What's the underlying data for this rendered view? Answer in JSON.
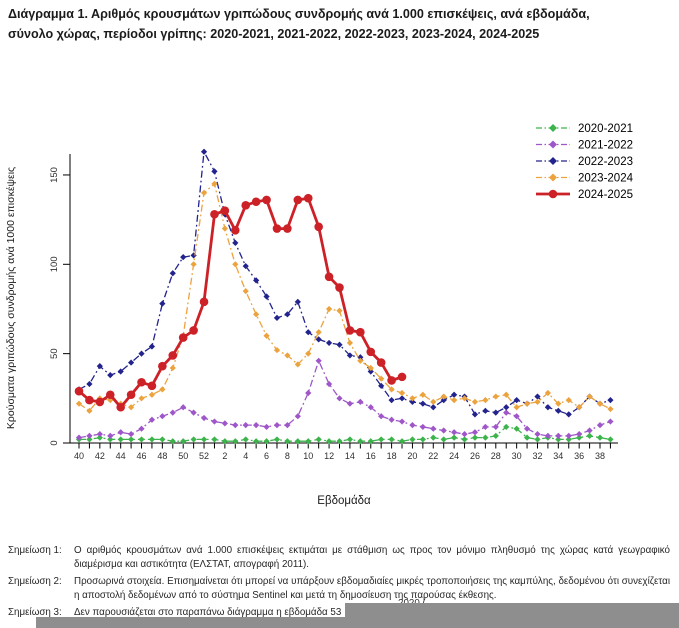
{
  "chart_data": {
    "type": "line",
    "title": "Διάγραμμα 1. Αριθμός κρουσμάτων γριπώδους συνδρομής ανά 1.000 επισκέψεις, ανά εβδομάδα, σύνολο χώρας, περίοδοι γρίπης: 2020-2021, 2021-2022, 2022-2023, 2023-2024, 2024-2025",
    "title_lines": [
      "Διάγραμμα 1. Αριθμός κρουσμάτων γριπώδους συνδρομής ανά 1.000 επισκέψεις, ανά εβδομάδα,",
      "σύνολο χώρας, περίοδοι γρίπης: 2020-2021, 2021-2022, 2022-2023, 2023-2024, 2024-2025"
    ],
    "xlabel": "Εβδομάδα",
    "ylabel": "Κρούσματα γριπώδους συνδρομής ανά 1000 επισκέψεις",
    "ylim": [
      0,
      170
    ],
    "yticks": [
      0,
      50,
      100,
      150
    ],
    "grid": false,
    "legend_position": "top-right",
    "x_tick_rule": "tick every week, label on even weeks",
    "weeks": [
      "40",
      "41",
      "42",
      "43",
      "44",
      "45",
      "46",
      "47",
      "48",
      "49",
      "50",
      "51",
      "52",
      "1",
      "2",
      "3",
      "4",
      "5",
      "6",
      "7",
      "8",
      "9",
      "10",
      "11",
      "12",
      "13",
      "14",
      "15",
      "16",
      "17",
      "18",
      "19",
      "20",
      "21",
      "22",
      "23",
      "24",
      "25",
      "26",
      "27",
      "28",
      "29",
      "30",
      "31",
      "32",
      "33",
      "34",
      "35",
      "36",
      "37",
      "38",
      "39"
    ],
    "series": [
      {
        "name": "2020-2021",
        "color": "#3cb44b",
        "style": "dashdot",
        "marker": "diamond",
        "values": [
          2,
          2,
          3,
          2,
          2,
          2,
          2,
          2,
          2,
          1,
          1,
          2,
          2,
          2,
          1,
          1,
          2,
          1,
          1,
          2,
          1,
          1,
          1,
          2,
          1,
          1,
          2,
          1,
          1,
          2,
          2,
          1,
          2,
          2,
          3,
          2,
          3,
          2,
          3,
          3,
          4,
          9,
          8,
          3,
          2,
          3,
          2,
          2,
          3,
          4,
          3,
          2
        ]
      },
      {
        "name": "2021-2022",
        "color": "#9f56c9",
        "style": "dashdot",
        "marker": "diamond",
        "values": [
          3,
          4,
          5,
          4,
          6,
          5,
          8,
          13,
          15,
          17,
          20,
          17,
          14,
          12,
          11,
          10,
          10,
          10,
          9,
          10,
          10,
          15,
          28,
          46,
          33,
          25,
          22,
          23,
          20,
          15,
          13,
          12,
          10,
          9,
          8,
          7,
          6,
          5,
          6,
          9,
          9,
          17,
          15,
          8,
          5,
          4,
          4,
          4,
          5,
          7,
          10,
          12
        ]
      },
      {
        "name": "2022-2023",
        "color": "#23238d",
        "style": "dashdot",
        "marker": "diamond",
        "values": [
          30,
          33,
          43,
          38,
          40,
          45,
          50,
          54,
          78,
          95,
          104,
          105,
          163,
          152,
          128,
          112,
          99,
          91,
          82,
          70,
          72,
          79,
          62,
          58,
          56,
          55,
          49,
          48,
          40,
          32,
          24,
          25,
          23,
          22,
          20,
          24,
          27,
          26,
          16,
          18,
          17,
          20,
          24,
          22,
          26,
          20,
          18,
          16,
          20,
          26,
          22,
          24
        ]
      },
      {
        "name": "2023-2024",
        "color": "#eca33e",
        "style": "dashdot",
        "marker": "diamond",
        "values": [
          22,
          18,
          25,
          24,
          22,
          20,
          25,
          27,
          30,
          42,
          60,
          100,
          140,
          145,
          120,
          100,
          85,
          72,
          60,
          52,
          49,
          44,
          50,
          62,
          75,
          74,
          56,
          46,
          42,
          36,
          30,
          28,
          25,
          27,
          23,
          26,
          24,
          25,
          23,
          24,
          26,
          27,
          20,
          22,
          23,
          28,
          22,
          24,
          20,
          26,
          22,
          19
        ]
      },
      {
        "name": "2024-2025",
        "color": "#cc2127",
        "style": "solid",
        "marker": "circle",
        "values": [
          29,
          24,
          23,
          27,
          20,
          27,
          34,
          32,
          43,
          49,
          59,
          63,
          79,
          128,
          130,
          119,
          133,
          135,
          136,
          120,
          120,
          136,
          137,
          121,
          93,
          87,
          63,
          62,
          51,
          45,
          35,
          37,
          null,
          null,
          null,
          null,
          null,
          null,
          null,
          null,
          null,
          null,
          null,
          null,
          null,
          null,
          null,
          null,
          null,
          null,
          null,
          null
        ]
      }
    ]
  },
  "footnotes": {
    "note1_label": "Σημείωση 1:",
    "note1_text": "Ο αριθμός κρουσμάτων ανά 1.000 επισκέψεις εκτιμάται με στάθμιση ως προς τον μόνιμο πληθυσμό της χώρας κατά γεωγραφικό διαμέρισμα και αστικότητα (ΕΛΣΤΑΤ, απογραφή 2011).",
    "note2_label": "Σημείωση 2:",
    "note2_text": "Προσωρινά στοιχεία. Επισημαίνεται ότι μπορεί να υπάρξουν εβδομαδιαίες μικρές τροποποιήσεις της καμπύλης, δεδομένου ότι συνεχίζεται η αποστολή δεδομένων από το σύστημα Sentinel και μετά τη δημοσίευση της παρούσας έκθεσης.",
    "note3_label": "Σημείωση 3:",
    "note3_text": "Δεν παρουσιάζεται στο παραπάνω διάγραμμα η εβδομάδα 53",
    "note3_obscured_fragment": "2020 ("
  }
}
